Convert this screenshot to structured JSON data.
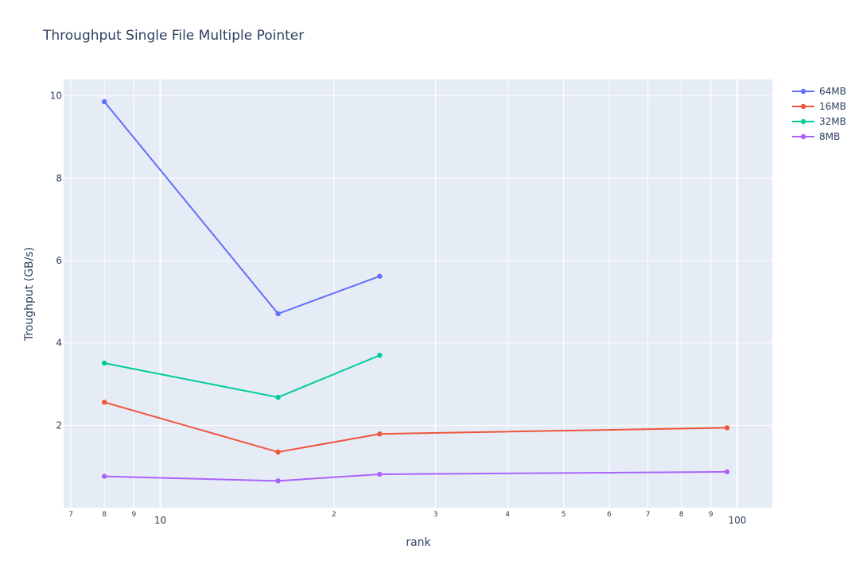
{
  "chart_data": {
    "type": "line",
    "title": "Throughput Single File Multiple Pointer",
    "xlabel": "rank",
    "ylabel": "Troughput (GB/s)",
    "x_scale": "log",
    "xlim": [
      6.8,
      115
    ],
    "ylim": [
      0,
      10.4
    ],
    "grid": true,
    "legend_position": "top-right",
    "x_major_ticks": [
      10,
      100
    ],
    "x_major_labels": [
      "10",
      "100"
    ],
    "x_minor_ticks": [
      7,
      8,
      9,
      20,
      30,
      40,
      50,
      60,
      70,
      80,
      90
    ],
    "x_minor_labels": [
      "7",
      "8",
      "9",
      "2",
      "3",
      "4",
      "5",
      "6",
      "7",
      "8",
      "9"
    ],
    "y_ticks": [
      2,
      4,
      6,
      8,
      10
    ],
    "y_tick_labels": [
      "2",
      "4",
      "6",
      "8",
      "10"
    ],
    "series": [
      {
        "name": "64MB",
        "color": "#636efa",
        "x": [
          8,
          16,
          24
        ],
        "y": [
          9.86,
          4.71,
          5.62
        ]
      },
      {
        "name": "16MB",
        "color": "#ef553b",
        "x": [
          8,
          16,
          24,
          96
        ],
        "y": [
          2.56,
          1.35,
          1.79,
          1.94
        ]
      },
      {
        "name": "32MB",
        "color": "#00cc96",
        "x": [
          8,
          16,
          24
        ],
        "y": [
          3.51,
          2.68,
          3.7
        ]
      },
      {
        "name": "8MB",
        "color": "#ab63fa",
        "x": [
          8,
          16,
          24,
          96
        ],
        "y": [
          0.76,
          0.65,
          0.81,
          0.87
        ]
      }
    ]
  }
}
